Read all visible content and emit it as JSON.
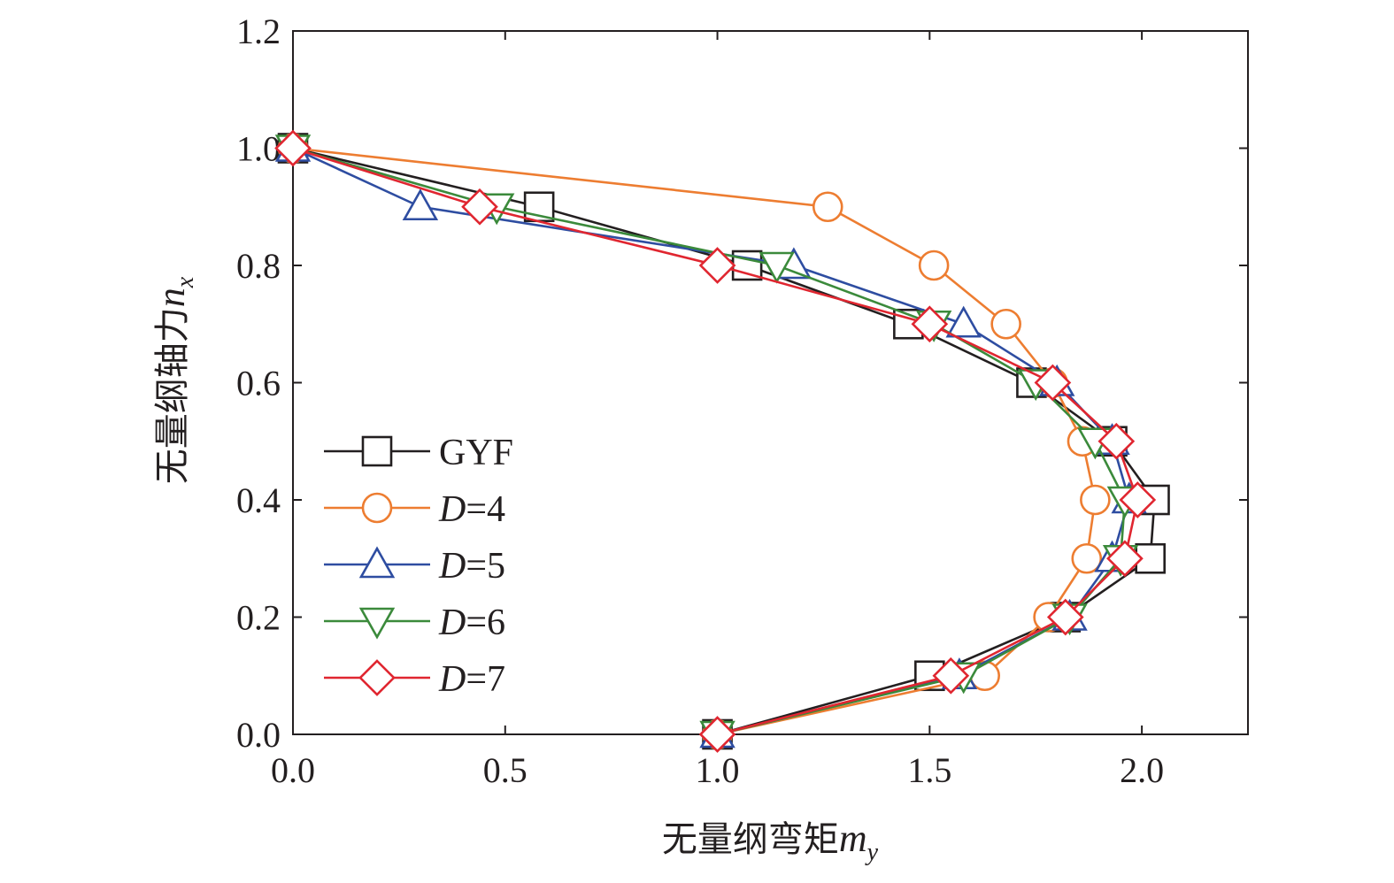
{
  "chart_data": {
    "type": "line",
    "xlabel": "无量纲弯矩",
    "xlabel_var": "m",
    "xlabel_sub": "y",
    "ylabel": "无量纲轴力",
    "ylabel_var": "n",
    "ylabel_sub": "x",
    "xlim": [
      0,
      2.25
    ],
    "ylim": [
      0,
      1.2
    ],
    "x_ticks": [
      0.0,
      0.5,
      1.0,
      1.5,
      2.0
    ],
    "x_tick_labels": [
      "0.0",
      "0.5",
      "1.0",
      "1.5",
      "2.0"
    ],
    "y_ticks": [
      0.0,
      0.2,
      0.4,
      0.6,
      0.8,
      1.0,
      1.2
    ],
    "y_tick_labels": [
      "0.0",
      "0.2",
      "0.4",
      "0.6",
      "0.8",
      "1.0",
      "1.2"
    ],
    "grid": false,
    "legend_position": "left-center",
    "series": [
      {
        "name": "GYF",
        "name_italic": "",
        "name_rest": "GYF",
        "color": "#231f20",
        "marker": "square",
        "x": [
          1.0,
          1.5,
          1.82,
          2.02,
          2.03,
          1.93,
          1.74,
          1.45,
          1.07,
          0.58,
          0.0
        ],
        "y": [
          0.0,
          0.1,
          0.2,
          0.3,
          0.4,
          0.5,
          0.6,
          0.7,
          0.8,
          0.9,
          1.0
        ]
      },
      {
        "name": "D=4",
        "name_italic": "D",
        "name_rest": "=4",
        "color": "#ed7d31",
        "marker": "circle",
        "x": [
          1.0,
          1.63,
          1.78,
          1.87,
          1.89,
          1.86,
          1.79,
          1.68,
          1.51,
          1.26,
          0.0
        ],
        "y": [
          0.0,
          0.1,
          0.2,
          0.3,
          0.4,
          0.5,
          0.6,
          0.7,
          0.8,
          0.9,
          1.0
        ]
      },
      {
        "name": "D=5",
        "name_italic": "D",
        "name_rest": "=5",
        "color": "#2e4da1",
        "marker": "triangle-up",
        "x": [
          1.0,
          1.57,
          1.83,
          1.93,
          1.97,
          1.93,
          1.8,
          1.58,
          1.18,
          0.3,
          0.0
        ],
        "y": [
          0.0,
          0.1,
          0.2,
          0.3,
          0.4,
          0.5,
          0.6,
          0.7,
          0.8,
          0.9,
          1.0
        ]
      },
      {
        "name": "D=6",
        "name_italic": "D",
        "name_rest": "=6",
        "color": "#3b8a3b",
        "marker": "triangle-down",
        "x": [
          1.0,
          1.58,
          1.83,
          1.95,
          1.96,
          1.89,
          1.75,
          1.51,
          1.14,
          0.48,
          0.0
        ],
        "y": [
          0.0,
          0.1,
          0.2,
          0.3,
          0.4,
          0.5,
          0.6,
          0.7,
          0.8,
          0.9,
          1.0
        ]
      },
      {
        "name": "D=7",
        "name_italic": "D",
        "name_rest": "=7",
        "color": "#e02630",
        "marker": "diamond",
        "x": [
          1.0,
          1.55,
          1.82,
          1.96,
          1.99,
          1.94,
          1.79,
          1.5,
          1.0,
          0.44,
          0.0
        ],
        "y": [
          0.0,
          0.1,
          0.2,
          0.3,
          0.4,
          0.5,
          0.6,
          0.7,
          0.8,
          0.9,
          1.0
        ]
      }
    ]
  }
}
